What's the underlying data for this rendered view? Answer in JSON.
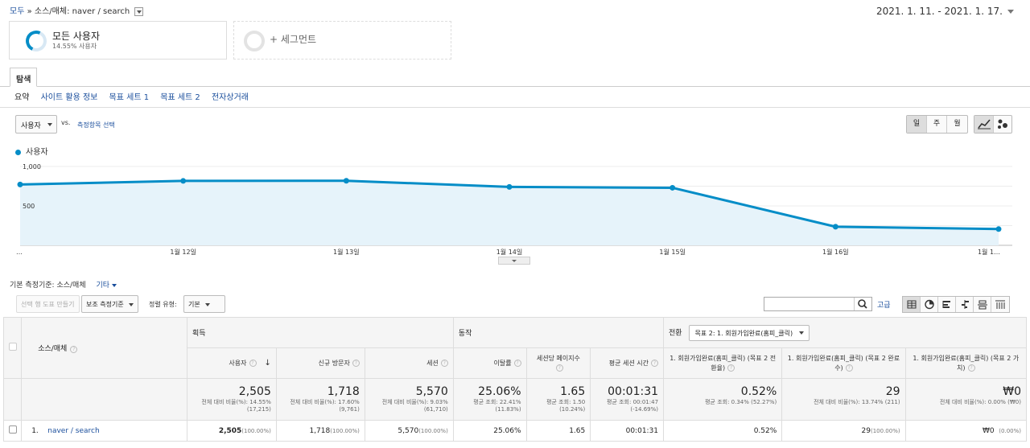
{
  "breadcrumb": {
    "root": "모두",
    "sep": "»",
    "current": "소스/매체: naver / search"
  },
  "date_range": "2021. 1. 11. - 2021. 1. 17.",
  "segments": [
    {
      "title": "모든 사용자",
      "subtitle": "14.55% 사용자"
    },
    {
      "title": "+ 세그먼트"
    }
  ],
  "tabs": {
    "explore": "탐색"
  },
  "subnav": [
    "요약",
    "사이트 활용 정보",
    "목표 세트 1",
    "목표 세트 2",
    "전자상거래"
  ],
  "chart_controls": {
    "metric": "사용자",
    "vs": "vs.",
    "select_metric": "측정항목 선택",
    "granularity": [
      "일",
      "주",
      "월"
    ],
    "granularity_selected": "일"
  },
  "chart_data": {
    "type": "area",
    "series": [
      {
        "name": "사용자",
        "values": [
          772,
          817,
          819,
          741,
          730,
          236,
          206
        ]
      }
    ],
    "x": [
      "…",
      "1월 12일",
      "1월 13일",
      "1월 14일",
      "1월 15일",
      "1월 16일",
      "1월 1…"
    ],
    "y_ticks": [
      "1,000",
      "500"
    ],
    "ylim": [
      0,
      1000
    ],
    "grid": true,
    "colors": {
      "line": "#058dc7",
      "fill": "#e6f3fa"
    }
  },
  "table_controls": {
    "primary_dimension_label": "기본 측정기준:",
    "primary_dimension": "소스/매체",
    "other": "기타",
    "make_chart": "선택 행 도표 만들기",
    "secondary_dimension": "보조 측정기준",
    "sort_type_label": "정렬 유형:",
    "sort_type": "기본",
    "advanced": "고급"
  },
  "table": {
    "dimension_header": "소스/매체",
    "groups": {
      "acquisition": "획득",
      "behavior": "동작",
      "conversion": "전환",
      "conversion_select": "목표 2: 1. 회원가입완료(홈피_클릭)"
    },
    "columns": [
      "사용자",
      "신규 방문자",
      "세션",
      "이탈률",
      "세션당 페이지수",
      "평균 세션 시간",
      "1. 회원가입완료(홈피_클릭) (목표 2 전환율)",
      "1. 회원가입완료(홈피_클릭) (목표 2 완료 수)",
      "1. 회원가입완료(홈피_클릭) (목표 2 가치)"
    ],
    "totals": [
      {
        "value": "2,505",
        "note": "전체 대비 비율(%): 14.55% (17,215)"
      },
      {
        "value": "1,718",
        "note": "전체 대비 비율(%): 17.60% (9,761)"
      },
      {
        "value": "5,570",
        "note": "전체 대비 비율(%): 9.03% (61,710)"
      },
      {
        "value": "25.06%",
        "note": "평균 조회: 22.41% (11.83%)"
      },
      {
        "value": "1.65",
        "note": "평균 조회: 1.50 (10.24%)"
      },
      {
        "value": "00:01:31",
        "note": "평균 조회: 00:01:47 (-14.69%)"
      },
      {
        "value": "0.52%",
        "note": "평균 조회: 0.34% (52.27%)"
      },
      {
        "value": "29",
        "note": "전체 대비 비율(%): 13.74% (211)"
      },
      {
        "value": "₩0",
        "note": "전체 대비 비율(%): 0.00% (₩0)"
      }
    ],
    "rows": [
      {
        "index": "1.",
        "name": "naver / search",
        "cells": [
          {
            "v": "2,505",
            "p": "(100.00%)"
          },
          {
            "v": "1,718",
            "p": "(100.00%)"
          },
          {
            "v": "5,570",
            "p": "(100.00%)"
          },
          {
            "v": "25.06%",
            "p": ""
          },
          {
            "v": "1.65",
            "p": ""
          },
          {
            "v": "00:01:31",
            "p": ""
          },
          {
            "v": "0.52%",
            "p": ""
          },
          {
            "v": "29",
            "p": "(100.00%)"
          },
          {
            "v": "₩0",
            "p": "(0.00%)"
          }
        ]
      }
    ]
  }
}
